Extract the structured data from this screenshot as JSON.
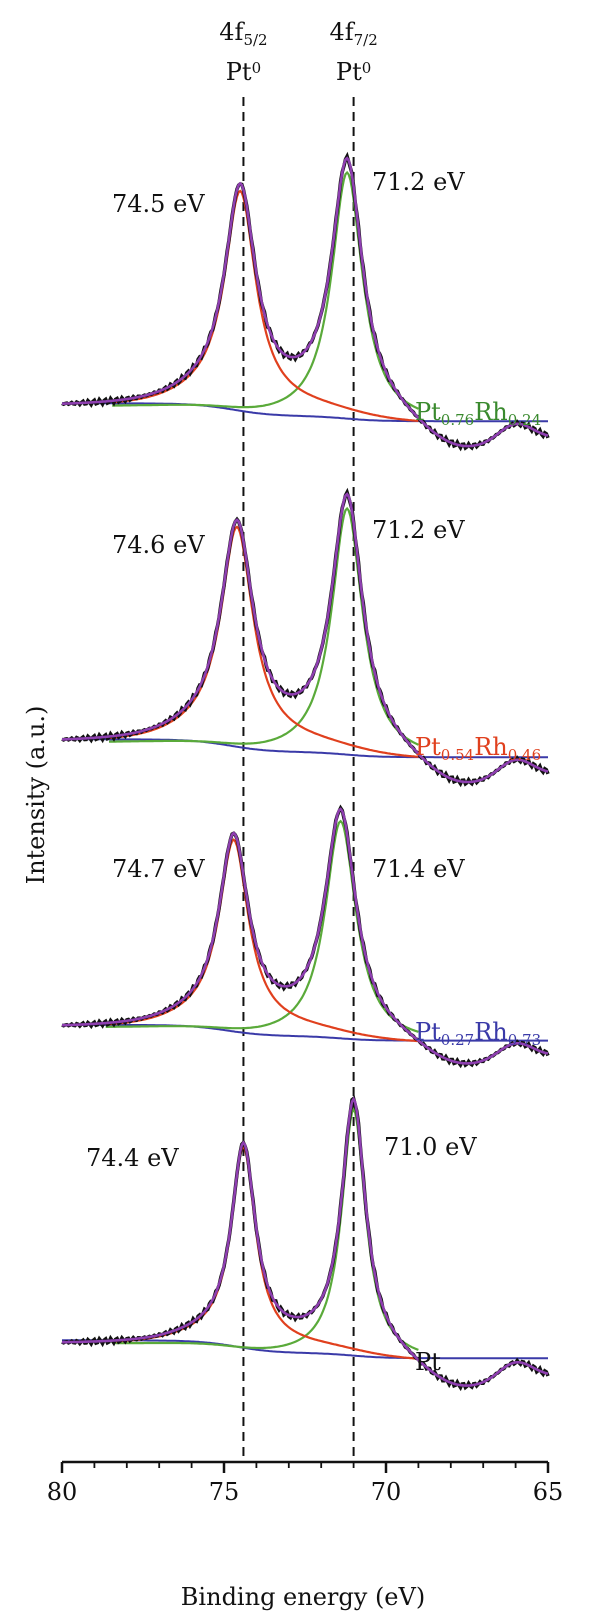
{
  "chart_data": {
    "type": "line",
    "xlabel": "Binding energy (eV)",
    "ylabel": "Intensity (a.u.)",
    "xlim": [
      80,
      65
    ],
    "x_ticks": [
      "80",
      "75",
      "70",
      "65"
    ],
    "x_tick_values": [
      80,
      75,
      70,
      65
    ],
    "reference_lines": [
      {
        "x": 74.4,
        "label_main": "4f",
        "label_sub": "5/2",
        "label_second": "Pt",
        "label_sup": "0"
      },
      {
        "x": 71.0,
        "label_main": "4f",
        "label_sub": "7/2",
        "label_second": "Pt",
        "label_sup": "0"
      }
    ],
    "series_colors": {
      "fit_total": "#8e3fb0",
      "raw": "#111111",
      "component_5_2": "#e0401e",
      "component_7_2": "#5aaa3a",
      "background": "#3a3aa8"
    },
    "samples": [
      {
        "id": "s1",
        "name_parts": [
          {
            "t": "Pt",
            "sub": false
          },
          {
            "t": "0.76",
            "sub": true
          },
          {
            "t": "Rh",
            "sub": false
          },
          {
            "t": "0.24",
            "sub": true
          }
        ],
        "name_color": "#3a8a2e",
        "peak_5_2": {
          "x": 74.5,
          "label": "74.5 eV"
        },
        "peak_7_2": {
          "x": 71.2,
          "label": "71.2 eV"
        },
        "r1": 0.83,
        "r2": 0.98,
        "dip": 0.28,
        "w1": 0.58,
        "w2": 0.58,
        "bg_step": 0.05,
        "tail": 0.2,
        "hump": 0.06
      },
      {
        "id": "s2",
        "name_parts": [
          {
            "t": "Pt",
            "sub": false
          },
          {
            "t": "0.54",
            "sub": true
          },
          {
            "t": "Rh",
            "sub": false
          },
          {
            "t": "0.46",
            "sub": true
          }
        ],
        "name_color": "#e0401e",
        "peak_5_2": {
          "x": 74.6,
          "label": "74.6 eV"
        },
        "peak_7_2": {
          "x": 71.2,
          "label": "71.2 eV"
        },
        "r1": 0.83,
        "r2": 0.98,
        "dip": 0.29,
        "w1": 0.6,
        "w2": 0.58,
        "bg_step": 0.05,
        "tail": 0.2,
        "hump": 0.06
      },
      {
        "id": "s3",
        "name_parts": [
          {
            "t": "Pt",
            "sub": false
          },
          {
            "t": "0.27",
            "sub": true
          },
          {
            "t": "Rh",
            "sub": false
          },
          {
            "t": "0.73",
            "sub": true
          }
        ],
        "name_color": "#3a3aa8",
        "peak_5_2": {
          "x": 74.7,
          "label": "74.7 eV"
        },
        "peak_7_2": {
          "x": 71.4,
          "label": "71.4 eV"
        },
        "r1": 0.82,
        "r2": 0.98,
        "dip": 0.29,
        "w1": 0.55,
        "w2": 0.58,
        "bg_step": 0.05,
        "tail": 0.2,
        "hump": 0.06
      },
      {
        "id": "s4",
        "name_parts": [
          {
            "t": "Pt",
            "sub": false
          }
        ],
        "name_color": "#111111",
        "peak_5_2": {
          "x": 74.4,
          "label": "74.4 eV"
        },
        "peak_7_2": {
          "x": 71.0,
          "label": "71.0 eV"
        },
        "r1": 0.76,
        "r2": 0.98,
        "dip": 0.22,
        "w1": 0.45,
        "w2": 0.45,
        "bg_step": 0.05,
        "tail": 0.18,
        "hump": 0.06
      }
    ]
  }
}
